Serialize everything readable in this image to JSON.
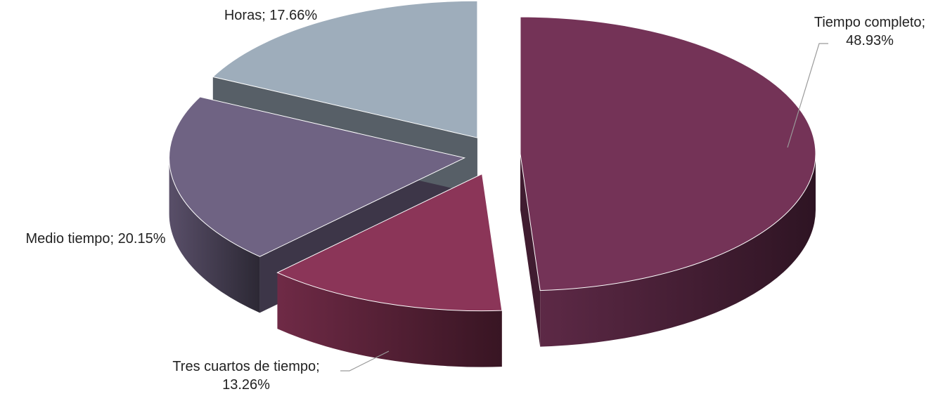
{
  "chart_data": {
    "type": "pie",
    "title": "",
    "style": "3d-exploded",
    "slices": [
      {
        "name": "Tiempo completo",
        "value": 48.93,
        "color": "#743357",
        "label_lines": [
          "Tiempo completo;",
          "48.93%"
        ]
      },
      {
        "name": "Tres cuartos de tiempo",
        "value": 13.26,
        "color": "#8b3558",
        "label_lines": [
          "Tres cuartos de tiempo;",
          "13.26%"
        ]
      },
      {
        "name": "Medio tiempo",
        "value": 20.15,
        "color": "#6f6383",
        "label_lines": [
          "Medio tiempo; 20.15%"
        ]
      },
      {
        "name": "Horas",
        "value": 17.66,
        "color": "#9eadbb",
        "label_lines": [
          "Horas; 17.66%"
        ]
      }
    ]
  }
}
